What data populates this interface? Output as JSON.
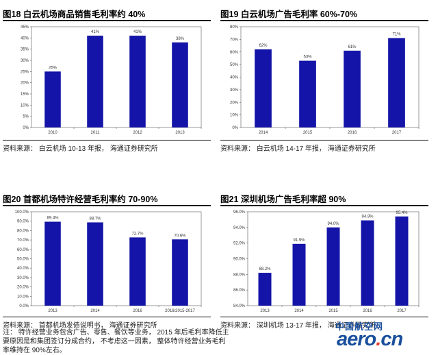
{
  "panels": [
    {
      "title": "图18 白云机场商品销售毛利率约 40%",
      "source": "资料来源：  白云机场 10-13 年报，  海通证券研究所"
    },
    {
      "title": "图19 白云机场广告毛利率 60%-70%",
      "source": "资料来源：  白云机场 14-17 年报，  海通证券研究所"
    },
    {
      "title": "图20 首都机场特许经营毛利率约 70-90%",
      "source": "资料来源：  首都机场发债说明书，  海通证券研究所",
      "note_lines": [
        "注：  特许经营业务包含广告、零售、餐饮等业务，  2015 年后毛利率降低主",
        "要原因是和集团签订分成合约，  不考虑这一因素，  整体特许经营业务毛利",
        "率维持在 90%左右。"
      ]
    },
    {
      "title": "图21 深圳机场广告毛利率超 90%",
      "source": "资料来源：  深圳机场 13-17 年报，  海通证券研究所"
    }
  ],
  "chart_data": [
    {
      "type": "bar",
      "categories": [
        "2010",
        "2011",
        "2012",
        "2013"
      ],
      "values": [
        25,
        41,
        41,
        38
      ],
      "value_labels": [
        "25%",
        "41%",
        "41%",
        "38%"
      ],
      "ylim": [
        0,
        45
      ],
      "yticks": [
        "0%",
        "5%",
        "10%",
        "15%",
        "20%",
        "25%",
        "30%",
        "35%",
        "40%",
        "45%"
      ],
      "grid": false,
      "bar_color": "#1414a8"
    },
    {
      "type": "bar",
      "categories": [
        "2014",
        "2015",
        "2016",
        "2017"
      ],
      "values": [
        62,
        53,
        61,
        71
      ],
      "value_labels": [
        "62%",
        "53%",
        "61%",
        "71%"
      ],
      "ylim": [
        0,
        80
      ],
      "yticks": [
        "0%",
        "10%",
        "20%",
        "30%",
        "40%",
        "50%",
        "60%",
        "70%",
        "80%"
      ],
      "grid": false,
      "bar_color": "#1414a8"
    },
    {
      "type": "bar",
      "categories": [
        "2013",
        "2014",
        "2016",
        "2016/2015-2017"
      ],
      "values": [
        89.4,
        88.7,
        72.7,
        70.6
      ],
      "value_labels": [
        "89.4%",
        "88.7%",
        "72.7%",
        "70.6%"
      ],
      "ylim": [
        0,
        100
      ],
      "yticks": [
        "0.0%",
        "10.0%",
        "20.0%",
        "30.0%",
        "40.0%",
        "50.0%",
        "60.0%",
        "70.0%",
        "80.0%",
        "90.0%",
        "100.0%"
      ],
      "grid": false,
      "bar_color": "#1414a8"
    },
    {
      "type": "bar",
      "categories": [
        "2013",
        "2014",
        "2015",
        "2016",
        "2017"
      ],
      "values": [
        88.2,
        91.9,
        94.0,
        94.9,
        95.4
      ],
      "value_labels": [
        "88.2%",
        "91.9%",
        "94.0%",
        "94.9%",
        "95.4%"
      ],
      "ylim": [
        84,
        96
      ],
      "yticks": [
        "84.0%",
        "86.0%",
        "88.0%",
        "90.0%",
        "92.0%",
        "94.0%",
        "96.0%"
      ],
      "grid": false,
      "bar_color": "#1414a8"
    }
  ],
  "watermark": {
    "cn": "中国航空网",
    "en_main": "aero",
    "en_dot": ".",
    "en_tld": "cn",
    "accent": "#1a4f9c",
    "dot_color": "#e03a2e"
  }
}
